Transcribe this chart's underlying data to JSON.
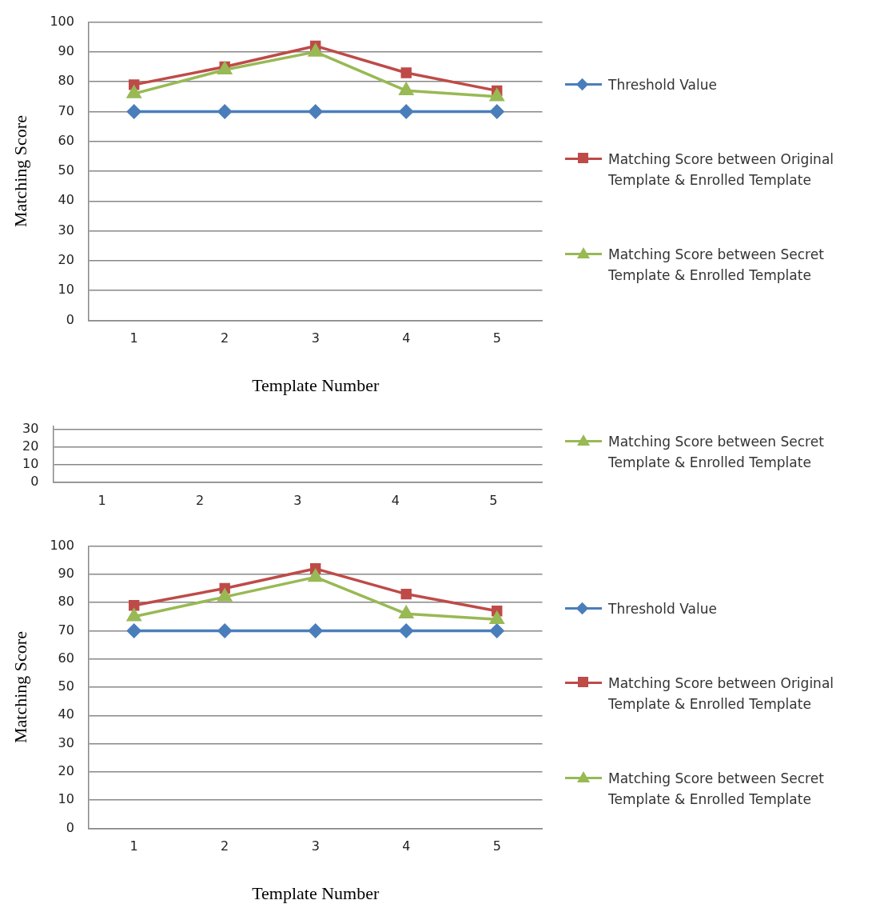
{
  "chart_data": [
    {
      "type": "line",
      "xlabel": "Template Number",
      "ylabel": "Matching Score",
      "categories": [
        "1",
        "2",
        "3",
        "4",
        "5"
      ],
      "ylim": [
        0,
        100
      ],
      "yticks": [
        0,
        10,
        20,
        30,
        40,
        50,
        60,
        70,
        80,
        90,
        100
      ],
      "grid": "y",
      "legend": "right",
      "series": [
        {
          "name": "Threshold Value",
          "color": "#4a7ebb",
          "marker": "diamond",
          "values": [
            70,
            70,
            70,
            70,
            70
          ]
        },
        {
          "name": "Matching Score between Original Template  & Enrolled Template",
          "color": "#be4b48",
          "marker": "square",
          "values": [
            79,
            85,
            92,
            83,
            77
          ]
        },
        {
          "name": "Matching Score between Secret Template & Enrolled Template",
          "color": "#98b954",
          "marker": "triangle",
          "values": [
            76,
            84,
            90,
            77,
            75
          ]
        }
      ]
    },
    {
      "type": "line",
      "categories": [
        "1",
        "2",
        "3",
        "4",
        "5"
      ],
      "ylim": [
        0,
        32
      ],
      "yticks": [
        0,
        10,
        20,
        30
      ],
      "grid": "y",
      "legend": "right",
      "series": [
        {
          "name": "Matching Score between Secret Template & Enrolled Template",
          "color": "#98b954",
          "marker": "triangle",
          "values": [
            null,
            null,
            null,
            null,
            null
          ]
        }
      ]
    },
    {
      "type": "line",
      "xlabel": "Template Number",
      "ylabel": "Matching Score",
      "categories": [
        "1",
        "2",
        "3",
        "4",
        "5"
      ],
      "ylim": [
        0,
        100
      ],
      "yticks": [
        0,
        10,
        20,
        30,
        40,
        50,
        60,
        70,
        80,
        90,
        100
      ],
      "grid": "y",
      "legend": "right",
      "series": [
        {
          "name": "Threshold Value",
          "color": "#4a7ebb",
          "marker": "diamond",
          "values": [
            70,
            70,
            70,
            70,
            70
          ]
        },
        {
          "name": "Matching Score between Original Template  & Enrolled Template",
          "color": "#be4b48",
          "marker": "square",
          "values": [
            79,
            85,
            92,
            83,
            77
          ]
        },
        {
          "name": "Matching Score between Secret Template & Enrolled Template",
          "color": "#98b954",
          "marker": "triangle",
          "values": [
            75,
            82,
            89,
            76,
            74
          ]
        }
      ]
    }
  ]
}
